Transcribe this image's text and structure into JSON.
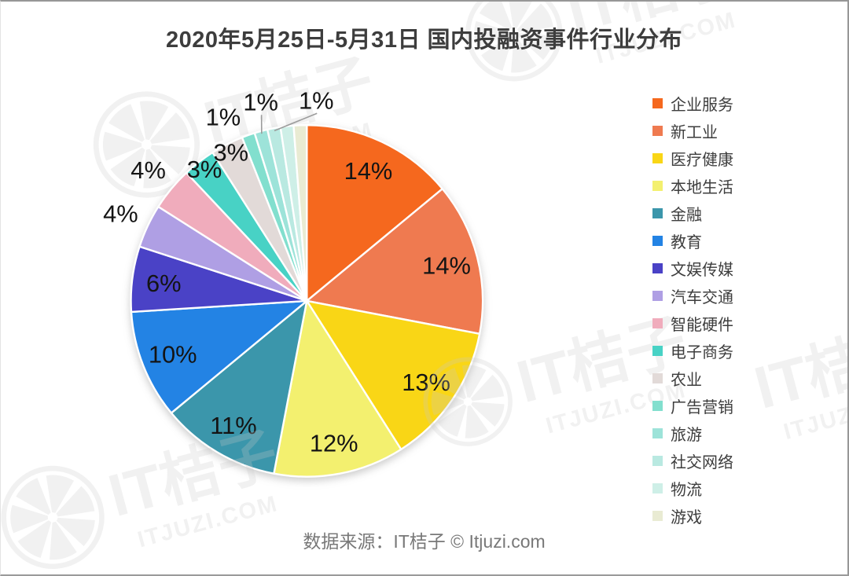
{
  "page": {
    "title": "2020年5月25日-5月31日 国内投融资事件行业分布",
    "source_text": "数据来源：IT桔子 © Itjuzi.com",
    "watermark_brand": "IT桔子",
    "watermark_domain": "ITJUZI.COM"
  },
  "chart_data": {
    "type": "pie",
    "title": "2020年5月25日-5月31日 国内投融资事件行业分布",
    "legend_position": "right",
    "start_angle_deg": 0,
    "direction": "clockwise",
    "slices": [
      {
        "name": "企业服务",
        "value": 14,
        "label": "14%",
        "color": "#F5681E",
        "label_placement": "inside"
      },
      {
        "name": "新工业",
        "value": 14,
        "label": "14%",
        "color": "#EF7A50",
        "label_placement": "inside"
      },
      {
        "name": "医疗健康",
        "value": 13,
        "label": "13%",
        "color": "#F9D616",
        "label_placement": "inside"
      },
      {
        "name": "本地生活",
        "value": 12,
        "label": "12%",
        "color": "#F3F06F",
        "label_placement": "inside"
      },
      {
        "name": "金融",
        "value": 11,
        "label": "11%",
        "color": "#3B96AB",
        "label_placement": "inside"
      },
      {
        "name": "教育",
        "value": 10,
        "label": "10%",
        "color": "#2383E4",
        "label_placement": "inside"
      },
      {
        "name": "文娱传媒",
        "value": 6,
        "label": "6%",
        "color": "#4A42C6",
        "label_placement": "inside"
      },
      {
        "name": "汽车交通",
        "value": 4,
        "label": "4%",
        "color": "#AF9FE4",
        "label_placement": "outside"
      },
      {
        "name": "智能硬件",
        "value": 4,
        "label": "4%",
        "color": "#F0ACBC",
        "label_placement": "outside"
      },
      {
        "name": "电子商务",
        "value": 3,
        "label": "3%",
        "color": "#48D2C5",
        "label_placement": "rim"
      },
      {
        "name": "农业",
        "value": 3,
        "label": "3%",
        "color": "#E2DAD8",
        "label_placement": "rim"
      },
      {
        "name": "广告营销",
        "value": 1.2,
        "label": "1%",
        "color": "#82DFCE",
        "label_placement": "spread"
      },
      {
        "name": "旅游",
        "value": 1.2,
        "label": "1%",
        "color": "#9DE3D9",
        "label_placement": "spread-leader"
      },
      {
        "name": "社交网络",
        "value": 1.2,
        "label": "1%",
        "color": "#B9E9E1",
        "label_placement": "spread-leader"
      },
      {
        "name": "物流",
        "value": 1.2,
        "label": "",
        "color": "#CEEFE7",
        "label_placement": "none"
      },
      {
        "name": "游戏",
        "value": 1.2,
        "label": "",
        "color": "#E9EBD3",
        "label_placement": "none"
      }
    ]
  }
}
